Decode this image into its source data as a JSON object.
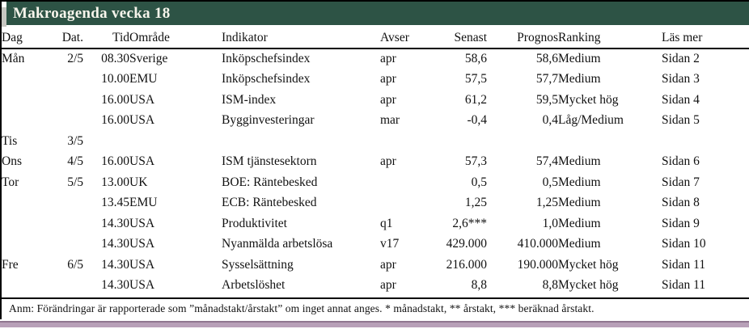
{
  "title": "Makroagenda vecka 18",
  "columns": [
    "Dag",
    "Dat.",
    "Tid",
    "Område",
    "Indikator",
    "Avser",
    "Senast",
    "Prognos",
    "Ranking",
    "Läs mer"
  ],
  "rows": [
    {
      "dag": "Mån",
      "dat": "2/5",
      "tid": "08.30",
      "omrade": "Sverige",
      "indikator": "Inköpschefsindex",
      "avser": "apr",
      "senast": "58,6",
      "prognos": "58,6",
      "ranking": "Medium",
      "lasmer": "Sidan 2"
    },
    {
      "dag": "",
      "dat": "",
      "tid": "10.00",
      "omrade": "EMU",
      "indikator": "Inköpschefsindex",
      "avser": "apr",
      "senast": "57,5",
      "prognos": "57,7",
      "ranking": "Medium",
      "lasmer": "Sidan 3"
    },
    {
      "dag": "",
      "dat": "",
      "tid": "16.00",
      "omrade": "USA",
      "indikator": "ISM-index",
      "avser": "apr",
      "senast": "61,2",
      "prognos": "59,5",
      "ranking": "Mycket hög",
      "lasmer": "Sidan 4"
    },
    {
      "dag": "",
      "dat": "",
      "tid": "16.00",
      "omrade": "USA",
      "indikator": "Bygginvesteringar",
      "avser": "mar",
      "senast": "-0,4",
      "prognos": "0,4",
      "ranking": "Låg/Medium",
      "lasmer": "Sidan 5"
    },
    {
      "dag": "Tis",
      "dat": "3/5",
      "tid": "",
      "omrade": "",
      "indikator": "",
      "avser": "",
      "senast": "",
      "prognos": "",
      "ranking": "",
      "lasmer": ""
    },
    {
      "dag": "Ons",
      "dat": "4/5",
      "tid": "16.00",
      "omrade": "USA",
      "indikator": "ISM tjänstesektorn",
      "avser": "apr",
      "senast": "57,3",
      "prognos": "57,4",
      "ranking": "Medium",
      "lasmer": "Sidan 6"
    },
    {
      "dag": "Tor",
      "dat": "5/5",
      "tid": "13.00",
      "omrade": "UK",
      "indikator": "BOE: Räntebesked",
      "avser": "",
      "senast": "0,5",
      "prognos": "0,5",
      "ranking": "Medium",
      "lasmer": "Sidan 7"
    },
    {
      "dag": "",
      "dat": "",
      "tid": "13.45",
      "omrade": "EMU",
      "indikator": "ECB: Räntebesked",
      "avser": "",
      "senast": "1,25",
      "prognos": "1,25",
      "ranking": "Medium",
      "lasmer": "Sidan 8"
    },
    {
      "dag": "",
      "dat": "",
      "tid": "14.30",
      "omrade": "USA",
      "indikator": "Produktivitet",
      "avser": "q1",
      "senast": "2,6***",
      "prognos": "1,0",
      "ranking": "Medium",
      "lasmer": "Sidan 9"
    },
    {
      "dag": "",
      "dat": "",
      "tid": "14.30",
      "omrade": "USA",
      "indikator": "Nyanmälda arbetslösa",
      "avser": "v17",
      "senast": "429.000",
      "prognos": "410.000",
      "ranking": "Medium",
      "lasmer": "Sidan 10"
    },
    {
      "dag": "Fre",
      "dat": "6/5",
      "tid": "14.30",
      "omrade": "USA",
      "indikator": "Sysselsättning",
      "avser": "apr",
      "senast": "216.000",
      "prognos": "190.000",
      "ranking": "Mycket hög",
      "lasmer": "Sidan 11"
    },
    {
      "dag": "",
      "dat": "",
      "tid": "14.30",
      "omrade": "USA",
      "indikator": "Arbetslöshet",
      "avser": "apr",
      "senast": "8,8",
      "prognos": "8,8",
      "ranking": "Mycket hög",
      "lasmer": "Sidan 11"
    }
  ],
  "footnote": "Anm: Förändringar är rapporterade som ”månadstakt/årstakt” om inget annat anges. * månadstakt, ** årstakt, *** beräknad årstakt.",
  "colors": {
    "title_bar_green": "#2d5345",
    "title_text": "#f7f5ec",
    "bottom_bar": "#b8a0b8",
    "bottom_bar_edge": "#8f768f",
    "notch_gray": "#c6c6c1",
    "rule_black": "#000000"
  }
}
